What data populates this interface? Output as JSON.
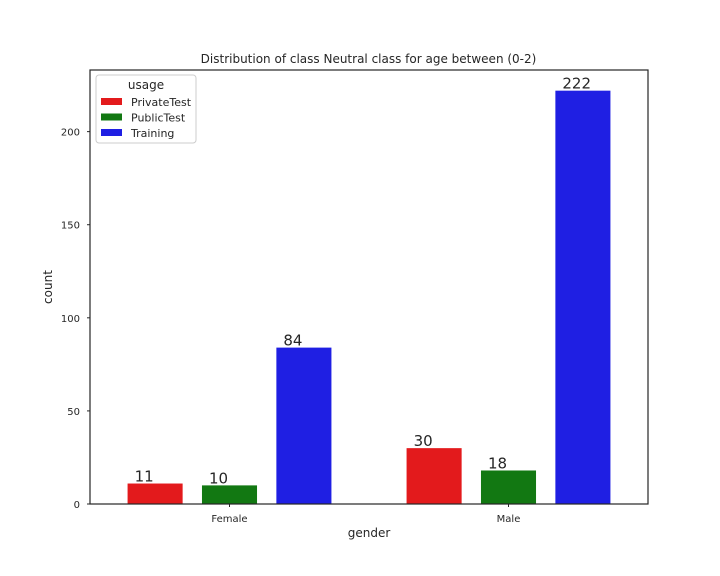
{
  "chart_data": {
    "type": "bar",
    "title": "Distribution of class Neutral class for age between (0-2)",
    "xlabel": "gender",
    "ylabel": "count",
    "categories": [
      "Female",
      "Male"
    ],
    "ylim": [
      0,
      233.1
    ],
    "yticks": [
      0,
      50,
      100,
      150,
      200
    ],
    "grid": false,
    "legend": {
      "title": "usage",
      "placement": "top-left"
    },
    "series": [
      {
        "name": "PrivateTest",
        "color": "#e31a1c",
        "values": [
          11,
          30
        ],
        "labels": [
          "11",
          "30"
        ]
      },
      {
        "name": "PublicTest",
        "color": "#127812",
        "values": [
          10,
          18
        ],
        "labels": [
          "10",
          "18"
        ]
      },
      {
        "name": "Training",
        "color": "#1f1fe3",
        "values": [
          84,
          222
        ],
        "labels": [
          "84",
          "222"
        ]
      }
    ]
  }
}
